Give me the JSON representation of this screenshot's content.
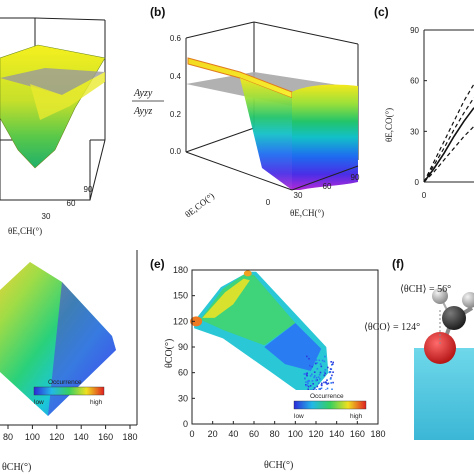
{
  "panels": {
    "a": {
      "label": ""
    },
    "b": {
      "label": "(b)"
    },
    "c": {
      "label": "(c)"
    },
    "d": {
      "label": ""
    },
    "e": {
      "label": "(e)"
    },
    "f": {
      "label": "(f)"
    }
  },
  "chart_data": [
    {
      "panel": "a",
      "type": "surface3d",
      "xlabel": "θE,CH(°)",
      "x_ticks": [
        "30",
        "60",
        "90"
      ],
      "colors": {
        "surface_top": "#f2ee22",
        "surface_mid": "#8ad13a",
        "plane": "#9a9a9a"
      }
    },
    {
      "panel": "b",
      "type": "surface3d",
      "z_label_num": "Ayzy",
      "z_label_den": "Ayyz",
      "ylabel": "θE,CO(°)",
      "xlabel": "θE,CH(°)",
      "z_ticks": [
        "0.0",
        "0.2",
        "0.4",
        "0.6"
      ],
      "x_ticks": [
        "0",
        "30",
        "60",
        "90"
      ],
      "zlim": [
        0,
        0.6
      ],
      "plane_level": 0.34,
      "colors": {
        "plane": "#a0a0a0",
        "edge": "#e07a1e"
      }
    },
    {
      "panel": "c",
      "type": "line",
      "ylabel": "θE,CO(°)",
      "y_ticks": [
        "0",
        "30",
        "60",
        "90"
      ],
      "x_ticks": [
        "0"
      ],
      "ylim": [
        0,
        90
      ],
      "series": [
        {
          "style": "solid",
          "x": [
            0,
            8,
            16,
            24,
            32,
            40
          ],
          "y": [
            0,
            8,
            17,
            27,
            36,
            44
          ]
        },
        {
          "style": "dashed",
          "x": [
            0,
            8,
            16,
            24,
            32,
            40
          ],
          "y": [
            0,
            12,
            24,
            36,
            48,
            58
          ]
        },
        {
          "style": "dashed",
          "x": [
            0,
            8,
            16,
            24,
            32,
            40
          ],
          "y": [
            0,
            6,
            13,
            20,
            27,
            33
          ]
        },
        {
          "style": "dashed",
          "x": [
            0,
            8,
            16,
            24,
            32,
            40
          ],
          "y": [
            0,
            10,
            20,
            31,
            41,
            50
          ]
        }
      ]
    },
    {
      "panel": "d",
      "type": "heatmap",
      "xlabel": "θCH(°)",
      "x_ticks": [
        "80",
        "100",
        "120",
        "140",
        "160",
        "180"
      ],
      "xlim": [
        80,
        180
      ],
      "legend": {
        "title": "Occurrence",
        "low": "low",
        "high": "high"
      }
    },
    {
      "panel": "e",
      "type": "heatmap",
      "xlabel": "θCH(°)",
      "ylabel": "θCO(°)",
      "x_ticks": [
        "0",
        "20",
        "40",
        "60",
        "80",
        "100",
        "120",
        "140",
        "160",
        "180"
      ],
      "y_ticks": [
        "0",
        "30",
        "60",
        "90",
        "120",
        "150",
        "180"
      ],
      "xlim": [
        0,
        180
      ],
      "ylim": [
        0,
        180
      ],
      "legend": {
        "title": "Occurrence",
        "low": "low",
        "high": "high"
      }
    },
    {
      "panel": "f",
      "type": "illustration",
      "annotations": [
        "⟨θCH⟩ = 56°",
        "⟨θCO⟩ = 124°"
      ]
    }
  ]
}
